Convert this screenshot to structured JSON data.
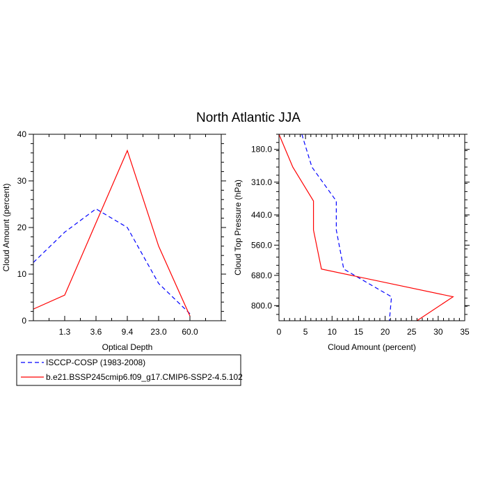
{
  "title": "North Atlantic JJA",
  "legend": {
    "placement": "bottom-left",
    "entries": [
      {
        "label": "ISCCP-COSP (1983-2008)",
        "color": "#0000ff",
        "style": "dashed"
      },
      {
        "label": "b.e21.BSSP245cmip6.f09_g17.CMIP6-SSP2-4.5.102",
        "color": "#ff0000",
        "style": "solid"
      }
    ]
  },
  "chart_data": [
    {
      "type": "line",
      "xlabel": "Optical Depth",
      "ylabel": "Cloud Amount (percent)",
      "xticks": [
        "1.3",
        "3.6",
        "9.4",
        "23.0",
        "60.0"
      ],
      "yticks": [
        "0",
        "10",
        "20",
        "30",
        "40"
      ],
      "ylim": [
        0,
        40
      ],
      "x_index": [
        0,
        1,
        2,
        3,
        4,
        5,
        6
      ],
      "series": [
        {
          "name": "ISCCP-COSP (1983-2008)",
          "color": "#0000ff",
          "dashed": true,
          "values": [
            12.5,
            19,
            24,
            20,
            8,
            1.5
          ]
        },
        {
          "name": "b.e21.BSSP245cmip6.f09_g17.CMIP6-SSP2-4.5.102",
          "color": "#ff0000",
          "dashed": false,
          "values": [
            2.5,
            5.5,
            21,
            36.5,
            16,
            1
          ]
        }
      ]
    },
    {
      "type": "line",
      "xlabel": "Cloud Amount (percent)",
      "ylabel": "Cloud Top Pressure (hPa)",
      "xticks": [
        "0",
        "5",
        "10",
        "15",
        "20",
        "25",
        "30",
        "35"
      ],
      "yticks": [
        "180.0",
        "310.0",
        "440.0",
        "560.0",
        "680.0",
        "800.0"
      ],
      "xlim": [
        0,
        35
      ],
      "ylim": [
        120,
        860
      ],
      "series": [
        {
          "name": "ISCCP-COSP (1983-2008)",
          "color": "#0000ff",
          "dashed": true,
          "x": [
            4.3,
            6.2,
            10.8,
            10.8,
            12.2,
            21.2,
            20.8
          ],
          "y": [
            120,
            250,
            385,
            500,
            655,
            765,
            860
          ]
        },
        {
          "name": "b.e21.BSSP245cmip6.f09_g17.CMIP6-SSP2-4.5.102",
          "color": "#ff0000",
          "dashed": false,
          "x": [
            0,
            2.6,
            6.5,
            6.5,
            8.0,
            32.8,
            26.0
          ],
          "y": [
            120,
            250,
            385,
            500,
            655,
            765,
            860
          ]
        }
      ]
    }
  ]
}
